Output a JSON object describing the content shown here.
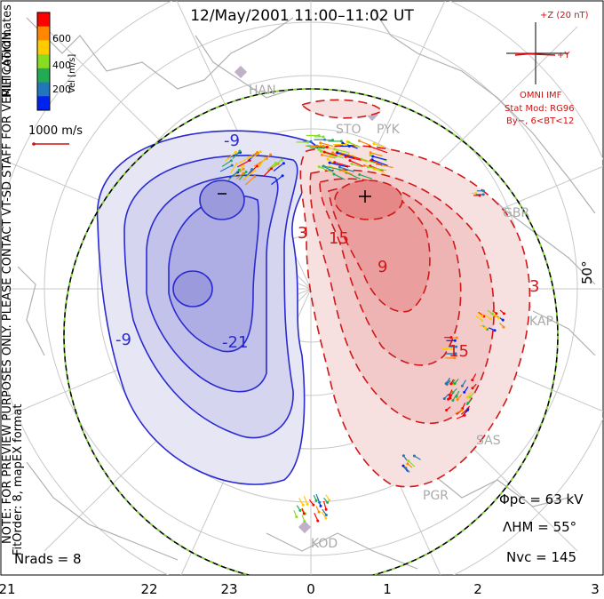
{
  "title": "12/May/2001 11:00–11:02 UT",
  "colorbar": {
    "axis_label": "Vel [m/s]",
    "ticks": [
      "600",
      "400",
      "200"
    ],
    "colors": [
      "#ff0000",
      "#ff8800",
      "#ffcc00",
      "#88dd22",
      "#22aa55",
      "#2277bb",
      "#0022ee"
    ]
  },
  "coord_label": "MLT coordinates",
  "preview_note": "NOTE: FOR PREVIEW PURPOSES ONLY. PLEASE CONTACT VT-SD STAFF FOR VERIFICATION.",
  "fit_note": "FitOrder: 8, mapEX format",
  "ref_vector": "1000 m/s",
  "imf": {
    "scale": "+Z (20 nT)",
    "y_label": "+Y",
    "source": "OMNI IMF",
    "model": "Stat Mod: RG96",
    "condition": "By−, 6<BT<12"
  },
  "lat_label": "50°",
  "mlt_ticks": [
    "21",
    "22",
    "23",
    "0",
    "1",
    "2",
    "3"
  ],
  "stations": [
    "HAN",
    "STO",
    "PYK",
    "GBR",
    "KAP",
    "SAS",
    "PGR",
    "KOD"
  ],
  "contours": {
    "negative_labels": [
      "-9",
      "-9",
      "-21"
    ],
    "positive_labels": [
      "3",
      "15",
      "9",
      "15",
      "3"
    ]
  },
  "stats": {
    "phi_pc": "Φpc = 63 kV",
    "lambda_hm": "ΛHM = 55°",
    "n_vc": "Nvc = 145",
    "n_rads": "Nrads = 8"
  },
  "colors": {
    "negative": "#2a2ad0",
    "positive": "#d01818",
    "grid": "#bbbbbb"
  }
}
